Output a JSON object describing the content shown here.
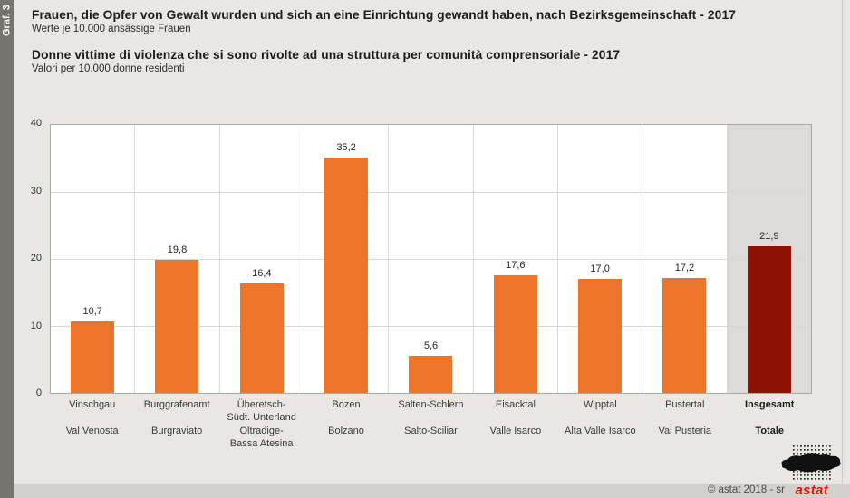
{
  "sidebar": {
    "label": "Graf. 3"
  },
  "header": {
    "title_de": "Frauen, die Opfer von Gewalt wurden und sich an eine Einrichtung gewandt haben, nach Bezirksgemeinschaft - 2017",
    "subtitle_de": "Werte je 10.000 ansässige Frauen",
    "title_it": "Donne vittime di violenza che si sono rivolte ad una struttura per comunità comprensoriale - 2017",
    "subtitle_it": "Valori per 10.000 donne residenti"
  },
  "chart_data": {
    "type": "bar",
    "title": "Frauen, die Opfer von Gewalt wurden und sich an eine Einrichtung gewandt haben, nach Bezirksgemeinschaft - 2017",
    "subtitle": "Werte je 10.000 ansässige Frauen / Valori per 10.000 donne residenti",
    "ylim": [
      0,
      40
    ],
    "yticks": [
      "40",
      "30",
      "20",
      "10",
      "0"
    ],
    "grid": "horizontal gridlines every 10, vertical separators between categories",
    "bar_color": "#ED7428",
    "total_bar_color": "#8E1103",
    "total_column_bg": "#DCDBD7",
    "items": [
      {
        "de": "Vinschgau",
        "it": "Val Venosta",
        "value": 10.7,
        "label": "10,7",
        "total": false
      },
      {
        "de": "Burggrafenamt",
        "it": "Burgraviato",
        "value": 19.8,
        "label": "19,8",
        "total": false
      },
      {
        "de": "Überetsch-\nSüdt. Unterland",
        "it": "Oltradige-\nBassa Atesina",
        "value": 16.4,
        "label": "16,4",
        "total": false
      },
      {
        "de": "Bozen",
        "it": "Bolzano",
        "value": 35.2,
        "label": "35,2",
        "total": false
      },
      {
        "de": "Salten-Schlern",
        "it": "Salto-Sciliar",
        "value": 5.6,
        "label": "5,6",
        "total": false
      },
      {
        "de": "Eisacktal",
        "it": "Valle Isarco",
        "value": 17.6,
        "label": "17,6",
        "total": false
      },
      {
        "de": "Wipptal",
        "it": "Alta Valle Isarco",
        "value": 17.0,
        "label": "17,0",
        "total": false
      },
      {
        "de": "Pustertal",
        "it": "Val Pusteria",
        "value": 17.2,
        "label": "17,2",
        "total": false
      },
      {
        "de": "Insgesamt",
        "it": "Totale",
        "value": 21.9,
        "label": "21,9",
        "total": true
      }
    ]
  },
  "footer": {
    "copyright": "© astat 2018 - sr",
    "logo_text": "astat"
  }
}
